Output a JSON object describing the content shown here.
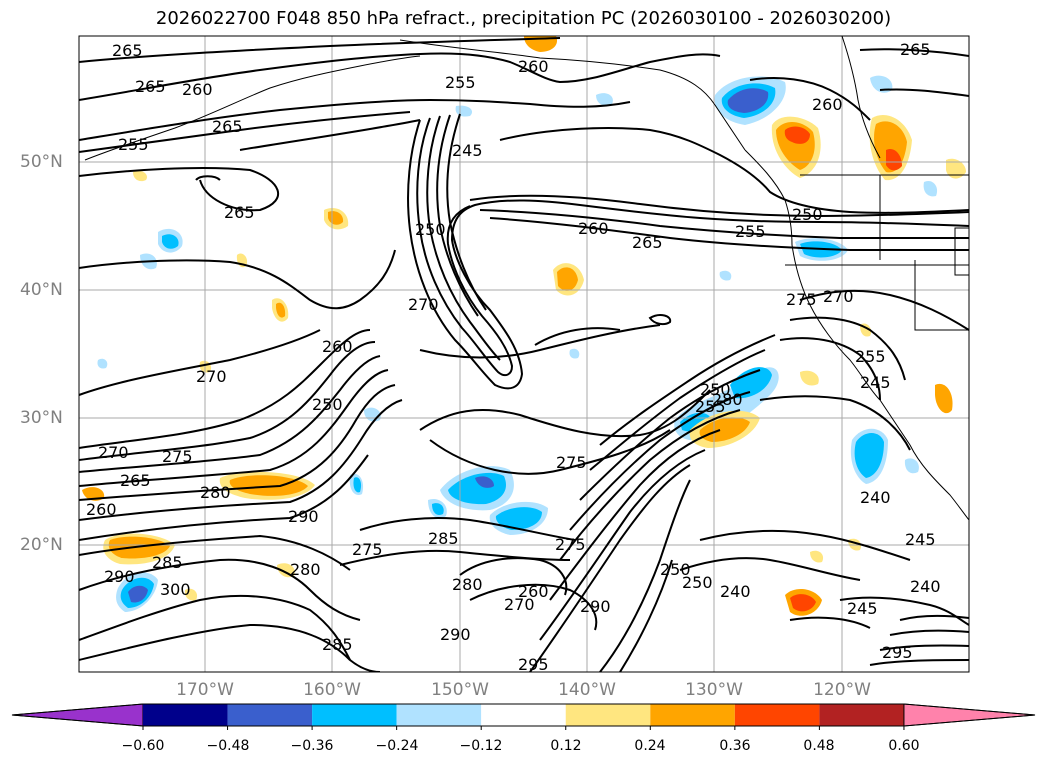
{
  "title": "2026022700 F048 850 hPa refract., precipitation PC (2026030100 - 2026030200)",
  "lat_labels": [
    "50°N",
    "40°N",
    "30°N",
    "20°N"
  ],
  "lon_labels": [
    "170°W",
    "160°W",
    "150°W",
    "140°W",
    "130°W",
    "120°W"
  ],
  "contour_labels": [
    "265",
    "265",
    "260",
    "255",
    "260",
    "265",
    "255",
    "265",
    "245",
    "265",
    "250",
    "260",
    "265",
    "255",
    "260",
    "270",
    "250",
    "275",
    "270",
    "275",
    "255",
    "245",
    "260",
    "270",
    "275",
    "250",
    "265",
    "270",
    "280",
    "290",
    "260",
    "275",
    "285",
    "290",
    "300",
    "280",
    "285",
    "275",
    "285",
    "280",
    "260",
    "270",
    "290",
    "290",
    "250",
    "250",
    "240",
    "240",
    "245",
    "245",
    "240",
    "250",
    "255",
    "280",
    "295",
    "295"
  ],
  "colorbar": {
    "ticks": [
      "−0.60",
      "−0.48",
      "−0.36",
      "−0.24",
      "−0.12",
      "0.12",
      "0.24",
      "0.36",
      "0.48",
      "0.60"
    ],
    "colors": [
      "#9932cc",
      "#00008b",
      "#3a5fcd",
      "#00bfff",
      "#b0e2ff",
      "#ffffff",
      "#ffe680",
      "#ffa500",
      "#ff4500",
      "#b22222",
      "#ff82ab"
    ]
  }
}
